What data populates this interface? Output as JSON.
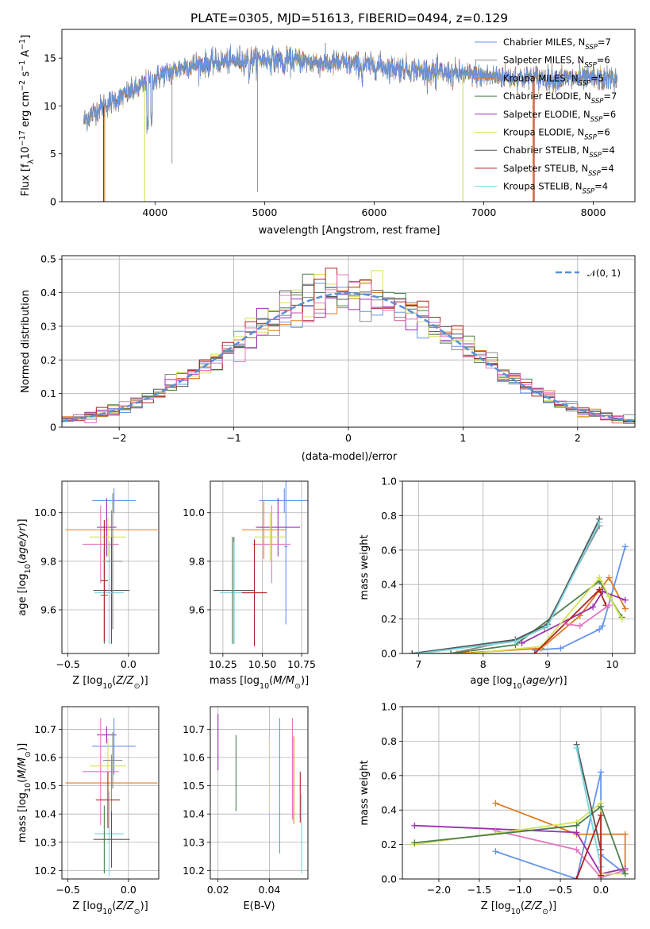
{
  "title": "PLATE=0305, MJD=51613, FIBERID=0494, z=0.129",
  "colors": {
    "Chabrier MILES": "#6495ED",
    "Salpeter MILES": "#8B8B8B",
    "Kroupa MILES": "#E07B1F",
    "Chabrier ELODIE": "#4E7F4E",
    "Salpeter ELODIE": "#9B30B0",
    "Kroupa ELODIE": "#D4E157",
    "Chabrier STELIB": "#555555",
    "Salpeter STELIB": "#B22222",
    "Kroupa STELIB": "#76D7E0",
    "extra_pink": "#E377C2",
    "gauss": "#5B8FD6"
  },
  "chart_data": [
    {
      "id": "spectrum",
      "type": "line",
      "title": "PLATE=0305, MJD=51613, FIBERID=0494, z=0.129",
      "xlabel": "wavelength [Angstrom, rest frame]",
      "ylabel": "Flux [f_λ 10^-17 erg cm^-2 s^-1 A^-1]",
      "xlim": [
        3150,
        8380
      ],
      "ylim": [
        0,
        18
      ],
      "xticks": [
        4000,
        5000,
        6000,
        7000,
        8000
      ],
      "yticks": [
        0,
        5,
        10,
        15
      ],
      "grid": false,
      "legend_position": "right",
      "legend": [
        {
          "model": "Chabrier MILES",
          "label": "Chabrier MILES, N",
          "sub": "SSP",
          "eq": "=7"
        },
        {
          "model": "Salpeter MILES",
          "label": "Salpeter MILES, N",
          "sub": "SSP",
          "eq": "=6"
        },
        {
          "model": "Kroupa MILES",
          "label": "Kroupa MILES, N",
          "sub": "SSP",
          "eq": "=5"
        },
        {
          "model": "Chabrier ELODIE",
          "label": "Chabrier ELODIE, N",
          "sub": "SSP",
          "eq": "=7"
        },
        {
          "model": "Salpeter ELODIE",
          "label": "Salpeter ELODIE, N",
          "sub": "SSP",
          "eq": "=6"
        },
        {
          "model": "Kroupa ELODIE",
          "label": "Kroupa ELODIE, N",
          "sub": "SSP",
          "eq": "=6"
        },
        {
          "model": "Chabrier STELIB",
          "label": "Chabrier STELIB, N",
          "sub": "SSP",
          "eq": "=4"
        },
        {
          "model": "Salpeter STELIB",
          "label": "Salpeter STELIB, N",
          "sub": "SSP",
          "eq": "=4"
        },
        {
          "model": "Kroupa STELIB",
          "label": "Kroupa STELIB, N",
          "sub": "SSP",
          "eq": "=4"
        }
      ],
      "continuum": [
        [
          3350,
          8.5
        ],
        [
          3500,
          9.8
        ],
        [
          3700,
          11.0
        ],
        [
          3900,
          12.2
        ],
        [
          4050,
          13.2
        ],
        [
          4300,
          14.2
        ],
        [
          4600,
          14.6
        ],
        [
          4900,
          14.9
        ],
        [
          5200,
          14.8
        ],
        [
          5600,
          14.5
        ],
        [
          6000,
          14.2
        ],
        [
          6400,
          13.7
        ],
        [
          6800,
          13.3
        ],
        [
          7200,
          13.0
        ],
        [
          7600,
          12.9
        ],
        [
          8000,
          12.8
        ],
        [
          8220,
          12.8
        ]
      ],
      "edge_drops": [
        {
          "model": "Kroupa MILES",
          "from": 3540,
          "to": 7450
        },
        {
          "model": "Salpeter STELIB",
          "from": 3530,
          "to": 7460
        },
        {
          "model": "Kroupa ELODIE",
          "from": 3905,
          "to": 6810
        }
      ],
      "spikes_down": [
        [
          4935,
          1.0
        ],
        [
          4155,
          4.0
        ]
      ]
    },
    {
      "id": "residuals",
      "type": "histogram",
      "xlabel": "(data-model)/error",
      "ylabel": "Normed distribution",
      "xlim": [
        -2.5,
        2.5
      ],
      "ylim": [
        0,
        0.51
      ],
      "xticks": [
        -2,
        -1,
        0,
        1,
        2
      ],
      "yticks": [
        0.0,
        0.1,
        0.2,
        0.3,
        0.4,
        0.5
      ],
      "grid": true,
      "legend_position": "top-right",
      "legend": [
        {
          "label": "𝒩(0, 1)",
          "style": "dashed"
        }
      ],
      "bin_width": 0.1,
      "gaussian": {
        "mu": 0,
        "sigma": 1
      }
    },
    {
      "id": "age_vs_Z",
      "type": "errorbar",
      "xlabel": "Z [log10(Z/Z⊙)]",
      "ylabel": "age [log10(age/yr)]",
      "xlim": [
        -0.55,
        0.25
      ],
      "ylim": [
        9.42,
        10.13
      ],
      "xticks": [
        -0.5,
        0.0
      ],
      "yticks": [
        9.6,
        9.8,
        10.0
      ],
      "grid": true,
      "points": [
        {
          "model": "Chabrier MILES",
          "x": -0.12,
          "xerr": 0.18,
          "y": 10.05,
          "yerr": 0.05
        },
        {
          "model": "Kroupa MILES",
          "x": -0.14,
          "xerr": 0.38,
          "y": 9.93,
          "yerr": 0.08
        },
        {
          "model": "Salpeter ELODIE",
          "x": -0.18,
          "xerr": 0.08,
          "y": 9.94,
          "yerr": 0.12
        },
        {
          "model": "extra_pink",
          "x": -0.23,
          "xerr": 0.15,
          "y": 9.87,
          "yerr": 0.16
        },
        {
          "model": "Kroupa ELODIE",
          "x": -0.17,
          "xerr": 0.15,
          "y": 9.9,
          "yerr": 0.08
        },
        {
          "model": "Chabrier STELIB",
          "x": -0.14,
          "xerr": 0.15,
          "y": 9.68,
          "yerr": 0.22
        },
        {
          "model": "Kroupa STELIB",
          "x": -0.16,
          "xerr": 0.12,
          "y": 9.67,
          "yerr": 0.21
        },
        {
          "model": "Chabrier ELODIE",
          "x": -0.2,
          "xerr": 0.03,
          "y": 9.66,
          "yerr": 0.2
        },
        {
          "model": "Salpeter STELIB",
          "x": -0.2,
          "xerr": 0.03,
          "y": 9.72,
          "yerr": 0.25
        },
        {
          "model": "Salpeter MILES",
          "x": -0.13,
          "xerr": 0.08,
          "y": 9.8,
          "yerr": 0.28
        }
      ]
    },
    {
      "id": "age_vs_mass",
      "type": "errorbar",
      "xlabel": "mass [log10(M/M⊙)]",
      "ylabel": "",
      "xlim": [
        10.17,
        10.79
      ],
      "ylim": [
        9.42,
        10.13
      ],
      "xticks": [
        10.25,
        10.5,
        10.75
      ],
      "yticks": [
        9.6,
        9.8,
        10.0
      ],
      "grid": true,
      "points": [
        {
          "model": "Chabrier MILES",
          "x": 10.64,
          "xerr": 0.16,
          "y": 10.05,
          "yerr": 0.05
        },
        {
          "model": "Chabrier MILES",
          "x": 10.65,
          "xerr": 0.01,
          "y": 9.86,
          "yerr": 0.32
        },
        {
          "model": "Salpeter ELODIE",
          "x": 10.6,
          "xerr": 0.14,
          "y": 9.94,
          "yerr": 0.12
        },
        {
          "model": "Kroupa MILES",
          "x": 10.51,
          "xerr": 0.14,
          "y": 9.93,
          "yerr": 0.12
        },
        {
          "model": "extra_pink",
          "x": 10.56,
          "xerr": 0.12,
          "y": 9.87,
          "yerr": 0.16
        },
        {
          "model": "Kroupa ELODIE",
          "x": 10.55,
          "xerr": 0.1,
          "y": 9.9,
          "yerr": 0.1
        },
        {
          "model": "Chabrier STELIB",
          "x": 10.32,
          "xerr": 0.13,
          "y": 9.68,
          "yerr": 0.22
        },
        {
          "model": "Kroupa STELIB",
          "x": 10.32,
          "xerr": 0.09,
          "y": 9.67,
          "yerr": 0.21
        },
        {
          "model": "Chabrier ELODIE",
          "x": 10.31,
          "xerr": 0.01,
          "y": 9.68,
          "yerr": 0.22
        },
        {
          "model": "Salpeter STELIB",
          "x": 10.45,
          "xerr": 0.08,
          "y": 9.67,
          "yerr": 0.22
        }
      ]
    },
    {
      "id": "weight_vs_age",
      "type": "line",
      "xlabel": "age [log10(age/yr)]",
      "ylabel": "mass weight",
      "xlim": [
        6.75,
        10.35
      ],
      "ylim": [
        0.0,
        1.0
      ],
      "xticks": [
        7,
        8,
        9,
        10
      ],
      "yticks": [
        0.0,
        0.2,
        0.4,
        0.6,
        0.8,
        1.0
      ],
      "grid": true,
      "series": [
        {
          "model": "Chabrier MILES",
          "x": [
            8.8,
            9.2,
            9.8,
            9.85,
            10.2
          ],
          "y": [
            0.02,
            0.03,
            0.14,
            0.16,
            0.62
          ]
        },
        {
          "model": "Salpeter MILES",
          "x": [
            6.9,
            7.5,
            8.5,
            8.95,
            9.8
          ],
          "y": [
            0.0,
            0.0,
            0.08,
            0.15,
            0.74
          ]
        },
        {
          "model": "Kroupa MILES",
          "x": [
            7.6,
            8.9,
            9.5,
            9.95,
            10.2
          ],
          "y": [
            0.0,
            0.03,
            0.22,
            0.44,
            0.26
          ]
        },
        {
          "model": "Chabrier ELODIE",
          "x": [
            7.5,
            8.5,
            9.8,
            10.15
          ],
          "y": [
            0.0,
            0.05,
            0.42,
            0.21
          ]
        },
        {
          "model": "Salpeter ELODIE",
          "x": [
            8.6,
            9.7,
            9.85,
            10.2
          ],
          "y": [
            0.06,
            0.27,
            0.36,
            0.31
          ]
        },
        {
          "model": "Kroupa ELODIE",
          "x": [
            7.8,
            8.9,
            9.8,
            9.95,
            10.15
          ],
          "y": [
            0.0,
            0.04,
            0.44,
            0.33,
            0.2
          ]
        },
        {
          "model": "Chabrier STELIB",
          "x": [
            6.9,
            8.5,
            9.0,
            9.8
          ],
          "y": [
            0.0,
            0.08,
            0.17,
            0.78
          ]
        },
        {
          "model": "Salpeter STELIB",
          "x": [
            8.8,
            9.8,
            9.9
          ],
          "y": [
            0.0,
            0.37,
            0.28
          ]
        },
        {
          "model": "Kroupa STELIB",
          "x": [
            7.0,
            8.5,
            9.0,
            9.8
          ],
          "y": [
            0.0,
            0.07,
            0.16,
            0.76
          ]
        },
        {
          "model": "extra_pink",
          "x": [
            9.3,
            9.5,
            9.95
          ],
          "y": [
            0.17,
            0.16,
            0.28
          ]
        }
      ]
    },
    {
      "id": "mass_vs_Z",
      "type": "errorbar",
      "xlabel": "Z [log10(Z/Z⊙)]",
      "ylabel": "mass [log10(M/M⊙)]",
      "xlim": [
        -0.55,
        0.25
      ],
      "ylim": [
        10.17,
        10.78
      ],
      "xticks": [
        -0.5,
        0.0
      ],
      "yticks": [
        10.2,
        10.3,
        10.4,
        10.5,
        10.6,
        10.7
      ],
      "grid": true,
      "points": [
        {
          "model": "Salpeter ELODIE",
          "x": -0.18,
          "xerr": 0.08,
          "y": 10.68,
          "yerr": 0.03
        },
        {
          "model": "Chabrier MILES",
          "x": -0.12,
          "xerr": 0.18,
          "y": 10.64,
          "yerr": 0.1
        },
        {
          "model": "extra_pink",
          "x": -0.23,
          "xerr": 0.15,
          "y": 10.55,
          "yerr": 0.19
        },
        {
          "model": "Kroupa ELODIE",
          "x": -0.17,
          "xerr": 0.15,
          "y": 10.57,
          "yerr": 0.1
        },
        {
          "model": "Salpeter MILES",
          "x": -0.13,
          "xerr": 0.08,
          "y": 10.59,
          "yerr": 0.1
        },
        {
          "model": "Kroupa MILES",
          "x": -0.14,
          "xerr": 0.38,
          "y": 10.51,
          "yerr": 0.1
        },
        {
          "model": "Salpeter STELIB",
          "x": -0.17,
          "xerr": 0.1,
          "y": 10.45,
          "yerr": 0.1
        },
        {
          "model": "Kroupa STELIB",
          "x": -0.16,
          "xerr": 0.12,
          "y": 10.33,
          "yerr": 0.15
        },
        {
          "model": "Chabrier STELIB",
          "x": -0.14,
          "xerr": 0.15,
          "y": 10.31,
          "yerr": 0.1
        },
        {
          "model": "Chabrier ELODIE",
          "x": -0.2,
          "xerr": 0.02,
          "y": 10.31,
          "yerr": 0.12
        }
      ]
    },
    {
      "id": "mass_vs_ebv",
      "type": "errorbar",
      "xlabel": "E(B-V)",
      "ylabel": "",
      "xlim": [
        0.017,
        0.055
      ],
      "ylim": [
        10.17,
        10.78
      ],
      "xticks": [
        0.02,
        0.04
      ],
      "yticks": [
        10.2,
        10.3,
        10.4,
        10.5,
        10.6,
        10.7
      ],
      "grid": true,
      "points": [
        {
          "model": "Salpeter ELODIE",
          "x": 0.02,
          "xerr": 0.0,
          "y": 10.655,
          "yerr": 0.1
        },
        {
          "model": "Chabrier ELODIE",
          "x": 0.027,
          "xerr": 0.0,
          "y": 10.545,
          "yerr": 0.135
        },
        {
          "model": "Kroupa ELODIE",
          "x": 0.04,
          "xerr": 0.0,
          "y": 10.535,
          "yerr": 0.135
        },
        {
          "model": "Chabrier MILES",
          "x": 0.044,
          "xerr": 0.0,
          "y": 10.5,
          "yerr": 0.24
        },
        {
          "model": "extra_pink",
          "x": 0.049,
          "xerr": 0.0,
          "y": 10.56,
          "yerr": 0.18
        },
        {
          "model": "Kroupa MILES",
          "x": 0.0495,
          "xerr": 0.0,
          "y": 10.52,
          "yerr": 0.155
        },
        {
          "model": "Salpeter STELIB",
          "x": 0.052,
          "xerr": 0.0,
          "y": 10.46,
          "yerr": 0.09
        },
        {
          "model": "Kroupa STELIB",
          "x": 0.0525,
          "xerr": 0.0,
          "y": 10.33,
          "yerr": 0.14
        }
      ]
    },
    {
      "id": "weight_vs_Z",
      "type": "line",
      "xlabel": "Z [log10(Z/Z⊙)]",
      "ylabel": "mass weight",
      "xlim": [
        -2.45,
        0.42
      ],
      "ylim": [
        0.0,
        1.0
      ],
      "xticks": [
        -2.0,
        -1.5,
        -1.0,
        -0.5,
        0.0
      ],
      "yticks": [
        0.0,
        0.2,
        0.4,
        0.6,
        0.8,
        1.0
      ],
      "grid": true,
      "series": [
        {
          "model": "Chabrier MILES",
          "x": [
            -1.3,
            -0.3,
            0.0,
            0.0,
            0.3
          ],
          "y": [
            0.16,
            0.0,
            0.62,
            0.14,
            0.03
          ]
        },
        {
          "model": "Kroupa MILES",
          "x": [
            -1.3,
            -0.3,
            0.3,
            0.3
          ],
          "y": [
            0.44,
            0.26,
            0.26,
            0.03
          ]
        },
        {
          "model": "Salpeter ELODIE",
          "x": [
            -2.3,
            -0.3,
            0.0,
            0.3
          ],
          "y": [
            0.31,
            0.27,
            0.03,
            0.06
          ]
        },
        {
          "model": "extra_pink",
          "x": [
            -1.3,
            -0.3,
            0.0,
            0.3
          ],
          "y": [
            0.28,
            0.17,
            0.01,
            0.05
          ]
        },
        {
          "model": "Kroupa ELODIE",
          "x": [
            -2.3,
            -0.3,
            0.0,
            0.0,
            0.3
          ],
          "y": [
            0.2,
            0.33,
            0.44,
            0.03,
            0.03
          ]
        },
        {
          "model": "Chabrier ELODIE",
          "x": [
            -2.3,
            -0.3,
            0.0,
            0.3
          ],
          "y": [
            0.21,
            0.31,
            0.42,
            0.03
          ]
        },
        {
          "model": "Chabrier STELIB",
          "x": [
            -0.3,
            0.0
          ],
          "y": [
            0.78,
            0.17
          ]
        },
        {
          "model": "Kroupa STELIB",
          "x": [
            -0.3,
            0.0
          ],
          "y": [
            0.76,
            0.07
          ]
        },
        {
          "model": "Salpeter STELIB",
          "x": [
            -0.3,
            0.0,
            0.0
          ],
          "y": [
            0.0,
            0.37,
            0.02
          ]
        }
      ]
    }
  ]
}
